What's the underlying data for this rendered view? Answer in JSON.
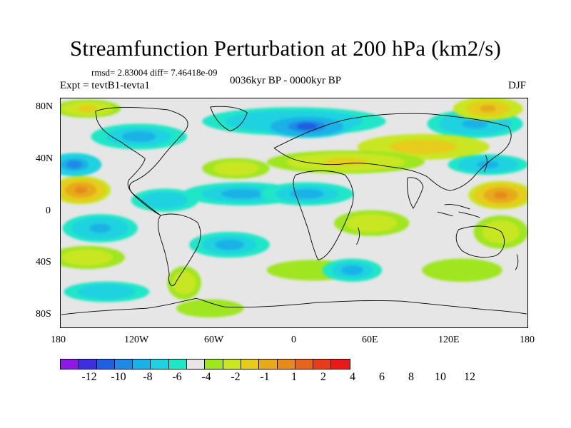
{
  "title": "Streamfunction Perturbation at 200 hPa (km2/s)",
  "stats": "rmsd= 2.83004  diff= 7.46418e-09",
  "expt": "Expt = tevtB1-tevta1",
  "period": "0036kyr BP - 0000kyr BP",
  "season": "DJF",
  "lat_ticks": [
    "80N",
    "40N",
    "0",
    "40S",
    "80S"
  ],
  "lon_ticks": [
    "180",
    "120W",
    "60W",
    "0",
    "60E",
    "120E",
    "180"
  ],
  "colorbar": {
    "colors": [
      "#8b1ae6",
      "#3d2ee0",
      "#1f5fe0",
      "#2089e6",
      "#1ab2e6",
      "#1ed2e0",
      "#20e6c8",
      "#e6e6e6",
      "#9fe620",
      "#c8e622",
      "#e6cc1c",
      "#e6aa1a",
      "#e68a1a",
      "#e6651c",
      "#e63c1a",
      "#e61a1a"
    ],
    "labels": [
      "-12",
      "-10",
      "-8",
      "-6",
      "-4",
      "-2",
      "-1",
      "1",
      "2",
      "4",
      "6",
      "8",
      "10",
      "12"
    ]
  },
  "anomalies": [
    {
      "lon": 0,
      "lat": 72,
      "rx": 70,
      "ry": 10,
      "v": -5
    },
    {
      "lon": 10,
      "lat": 68,
      "rx": 34,
      "ry": 8,
      "v": -8
    },
    {
      "lon": -120,
      "lat": 60,
      "rx": 36,
      "ry": 9,
      "v": -4
    },
    {
      "lon": -160,
      "lat": 82,
      "rx": 25,
      "ry": 6,
      "v": 5
    },
    {
      "lon": 140,
      "lat": 70,
      "rx": 36,
      "ry": 10,
      "v": -5
    },
    {
      "lon": 150,
      "lat": 82,
      "rx": 26,
      "ry": 8,
      "v": 7
    },
    {
      "lon": 100,
      "lat": 52,
      "rx": 50,
      "ry": 9,
      "v": 6
    },
    {
      "lon": 40,
      "lat": 40,
      "rx": 60,
      "ry": 8,
      "v": 5
    },
    {
      "lon": -45,
      "lat": 35,
      "rx": 25,
      "ry": 7,
      "v": 4
    },
    {
      "lon": 150,
      "lat": 38,
      "rx": 30,
      "ry": 7,
      "v": -5
    },
    {
      "lon": -170,
      "lat": 38,
      "rx": 20,
      "ry": 8,
      "v": -6
    },
    {
      "lon": -165,
      "lat": 18,
      "rx": 22,
      "ry": 10,
      "v": 9
    },
    {
      "lon": 160,
      "lat": 14,
      "rx": 24,
      "ry": 10,
      "v": 9
    },
    {
      "lon": -40,
      "lat": 15,
      "rx": 45,
      "ry": 8,
      "v": -4
    },
    {
      "lon": 10,
      "lat": 15,
      "rx": 35,
      "ry": 8,
      "v": -4
    },
    {
      "lon": -100,
      "lat": 10,
      "rx": 25,
      "ry": 8,
      "v": -3
    },
    {
      "lon": 60,
      "lat": -8,
      "rx": 28,
      "ry": 9,
      "v": 4
    },
    {
      "lon": 160,
      "lat": -15,
      "rx": 20,
      "ry": 12,
      "v": 3
    },
    {
      "lon": -150,
      "lat": -12,
      "rx": 28,
      "ry": 10,
      "v": -5
    },
    {
      "lon": -160,
      "lat": -35,
      "rx": 28,
      "ry": 8,
      "v": 3
    },
    {
      "lon": -50,
      "lat": -25,
      "rx": 30,
      "ry": 9,
      "v": -4
    },
    {
      "lon": 15,
      "lat": -45,
      "rx": 35,
      "ry": 7,
      "v": 2
    },
    {
      "lon": 45,
      "lat": -45,
      "rx": 22,
      "ry": 8,
      "v": -4
    },
    {
      "lon": 130,
      "lat": -45,
      "rx": 30,
      "ry": 8,
      "v": 2
    },
    {
      "lon": -145,
      "lat": -62,
      "rx": 32,
      "ry": 7,
      "v": -3
    },
    {
      "lon": -85,
      "lat": -55,
      "rx": 12,
      "ry": 12,
      "v": 3
    },
    {
      "lon": -65,
      "lat": -75,
      "rx": 25,
      "ry": 6,
      "v": 2
    }
  ]
}
